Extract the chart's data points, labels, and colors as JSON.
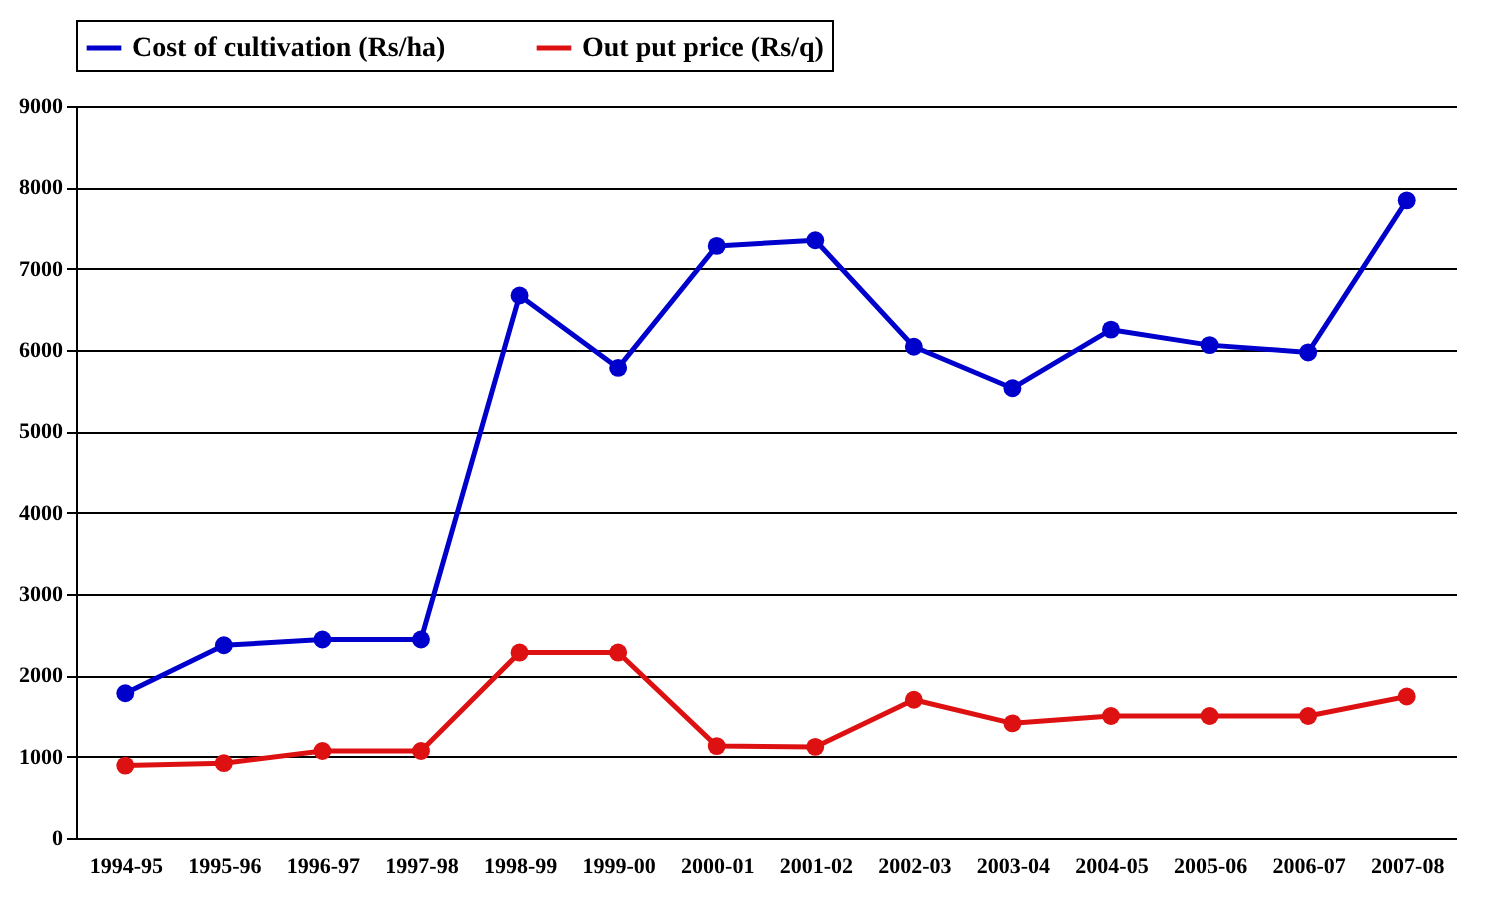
{
  "chart_data": {
    "type": "line",
    "categories": [
      "1994-95",
      "1995-96",
      "1996-97",
      "1997-98",
      "1998-99",
      "1999-00",
      "2000-01",
      "2001-02",
      "2002-03",
      "2003-04",
      "2004-05",
      "2005-06",
      "2006-07",
      "2007-08"
    ],
    "series": [
      {
        "name": "Cost of cultivation (Rs/ha)",
        "color": "#0000cc",
        "values": [
          1780,
          2370,
          2440,
          2440,
          6670,
          5780,
          7280,
          7350,
          6040,
          5530,
          6250,
          6060,
          5970,
          7840
        ]
      },
      {
        "name": "Out put price (Rs/q)",
        "color": "#dd1111",
        "values": [
          890,
          920,
          1070,
          1070,
          2280,
          2280,
          1130,
          1120,
          1700,
          1410,
          1500,
          1500,
          1500,
          1740
        ]
      }
    ],
    "ylim": [
      0,
      9000
    ],
    "yticks": [
      0,
      1000,
      2000,
      3000,
      4000,
      5000,
      6000,
      7000,
      8000,
      9000
    ],
    "grid": "y",
    "legend": "top",
    "marker": "circle",
    "line_style": "solid"
  }
}
